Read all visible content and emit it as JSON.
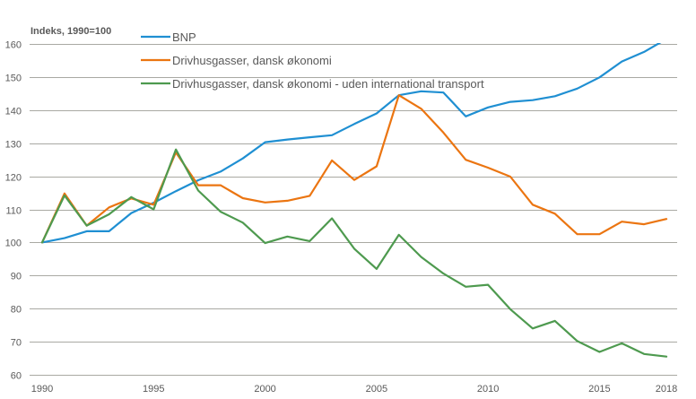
{
  "chart_data": {
    "type": "line",
    "title": "",
    "ylabel": "Indeks, 1990=100",
    "xlabel": "",
    "ylim": [
      60,
      160
    ],
    "xlim": [
      1990,
      2018
    ],
    "grid": true,
    "legend_position": "top-left",
    "y_ticks": [
      60,
      70,
      80,
      90,
      100,
      110,
      120,
      130,
      140,
      150,
      160
    ],
    "x_ticks": [
      1990,
      1995,
      2000,
      2005,
      2010,
      2015,
      2018
    ],
    "x": [
      1990,
      1991,
      1992,
      1993,
      1994,
      1995,
      1996,
      1997,
      1998,
      1999,
      2000,
      2001,
      2002,
      2003,
      2004,
      2005,
      2006,
      2007,
      2008,
      2009,
      2010,
      2011,
      2012,
      2013,
      2014,
      2015,
      2016,
      2017,
      2018
    ],
    "series": [
      {
        "name": "BNP",
        "color": "#1F8FD2",
        "values": [
          100,
          101.3,
          103.4,
          103.4,
          108.9,
          112,
          115.5,
          118.8,
          121.4,
          125.4,
          130.3,
          131.1,
          131.8,
          132.4,
          135.8,
          139,
          144.5,
          145.7,
          145.3,
          138.1,
          140.8,
          142.5,
          143,
          144.2,
          146.5,
          149.9,
          154.7,
          157.6,
          161.5
        ]
      },
      {
        "name": "Drivhusgasser, dansk økonomi",
        "color": "#EB7511",
        "values": [
          100,
          114.8,
          105.1,
          110.6,
          113.3,
          111.4,
          127.2,
          117.3,
          117.3,
          113.4,
          112.1,
          112.6,
          114.1,
          124.8,
          118.9,
          123,
          144.5,
          140.4,
          133.2,
          125,
          122.6,
          119.9,
          111.4,
          108.7,
          102.5,
          102.5,
          106.3,
          105.5,
          107.1
        ]
      },
      {
        "name": "Drivhusgasser, dansk økonomi - uden international transport",
        "color": "#4E9A4F",
        "values": [
          100,
          114.2,
          105.1,
          108.5,
          113.7,
          110,
          128.1,
          115.7,
          109.3,
          106,
          99.8,
          101.8,
          100.4,
          107.3,
          98.1,
          92,
          102.3,
          95.6,
          90.6,
          86.6,
          87.2,
          79.8,
          74,
          76.3,
          70.2,
          66.9,
          69.5,
          66.3,
          65.5
        ]
      }
    ]
  }
}
